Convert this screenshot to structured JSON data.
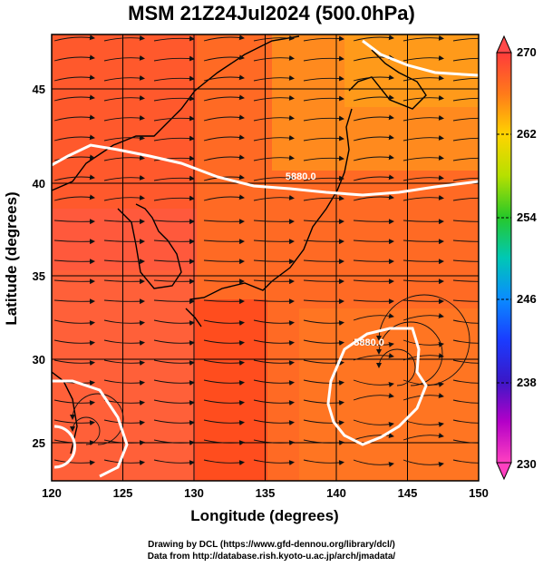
{
  "title": "MSM 21Z24Jul2024 (500.0hPa)",
  "x_axis": {
    "label": "Longitude (degrees)",
    "ticks": [
      "120",
      "125",
      "130",
      "135",
      "140",
      "145",
      "150"
    ]
  },
  "y_axis": {
    "label": "Latitude  (degrees)",
    "ticks": [
      "25",
      "30",
      "35",
      "40",
      "45"
    ]
  },
  "colorbar": {
    "ticks": [
      "270",
      "262",
      "254",
      "246",
      "238",
      "230"
    ],
    "colors": [
      "#ff3b3b",
      "#ff7a1a",
      "#ffd400",
      "#b6e000",
      "#28c828",
      "#00c8b4",
      "#0a8cff",
      "#1a3cff",
      "#3a18c8",
      "#b400c8",
      "#ff40c0"
    ]
  },
  "contours": [
    {
      "label": "5880.0",
      "lon": 137.5,
      "lat": 40.0
    },
    {
      "label": "5880.0",
      "lon": 142.3,
      "lat": 30.6
    }
  ],
  "credits": {
    "line1": "Drawing by DCL (https://www.gfd-dennou.org/library/dcl/)",
    "line2": "Data from http://database.rish.kyoto-u.ac.jp/arch/jmadata/"
  }
}
